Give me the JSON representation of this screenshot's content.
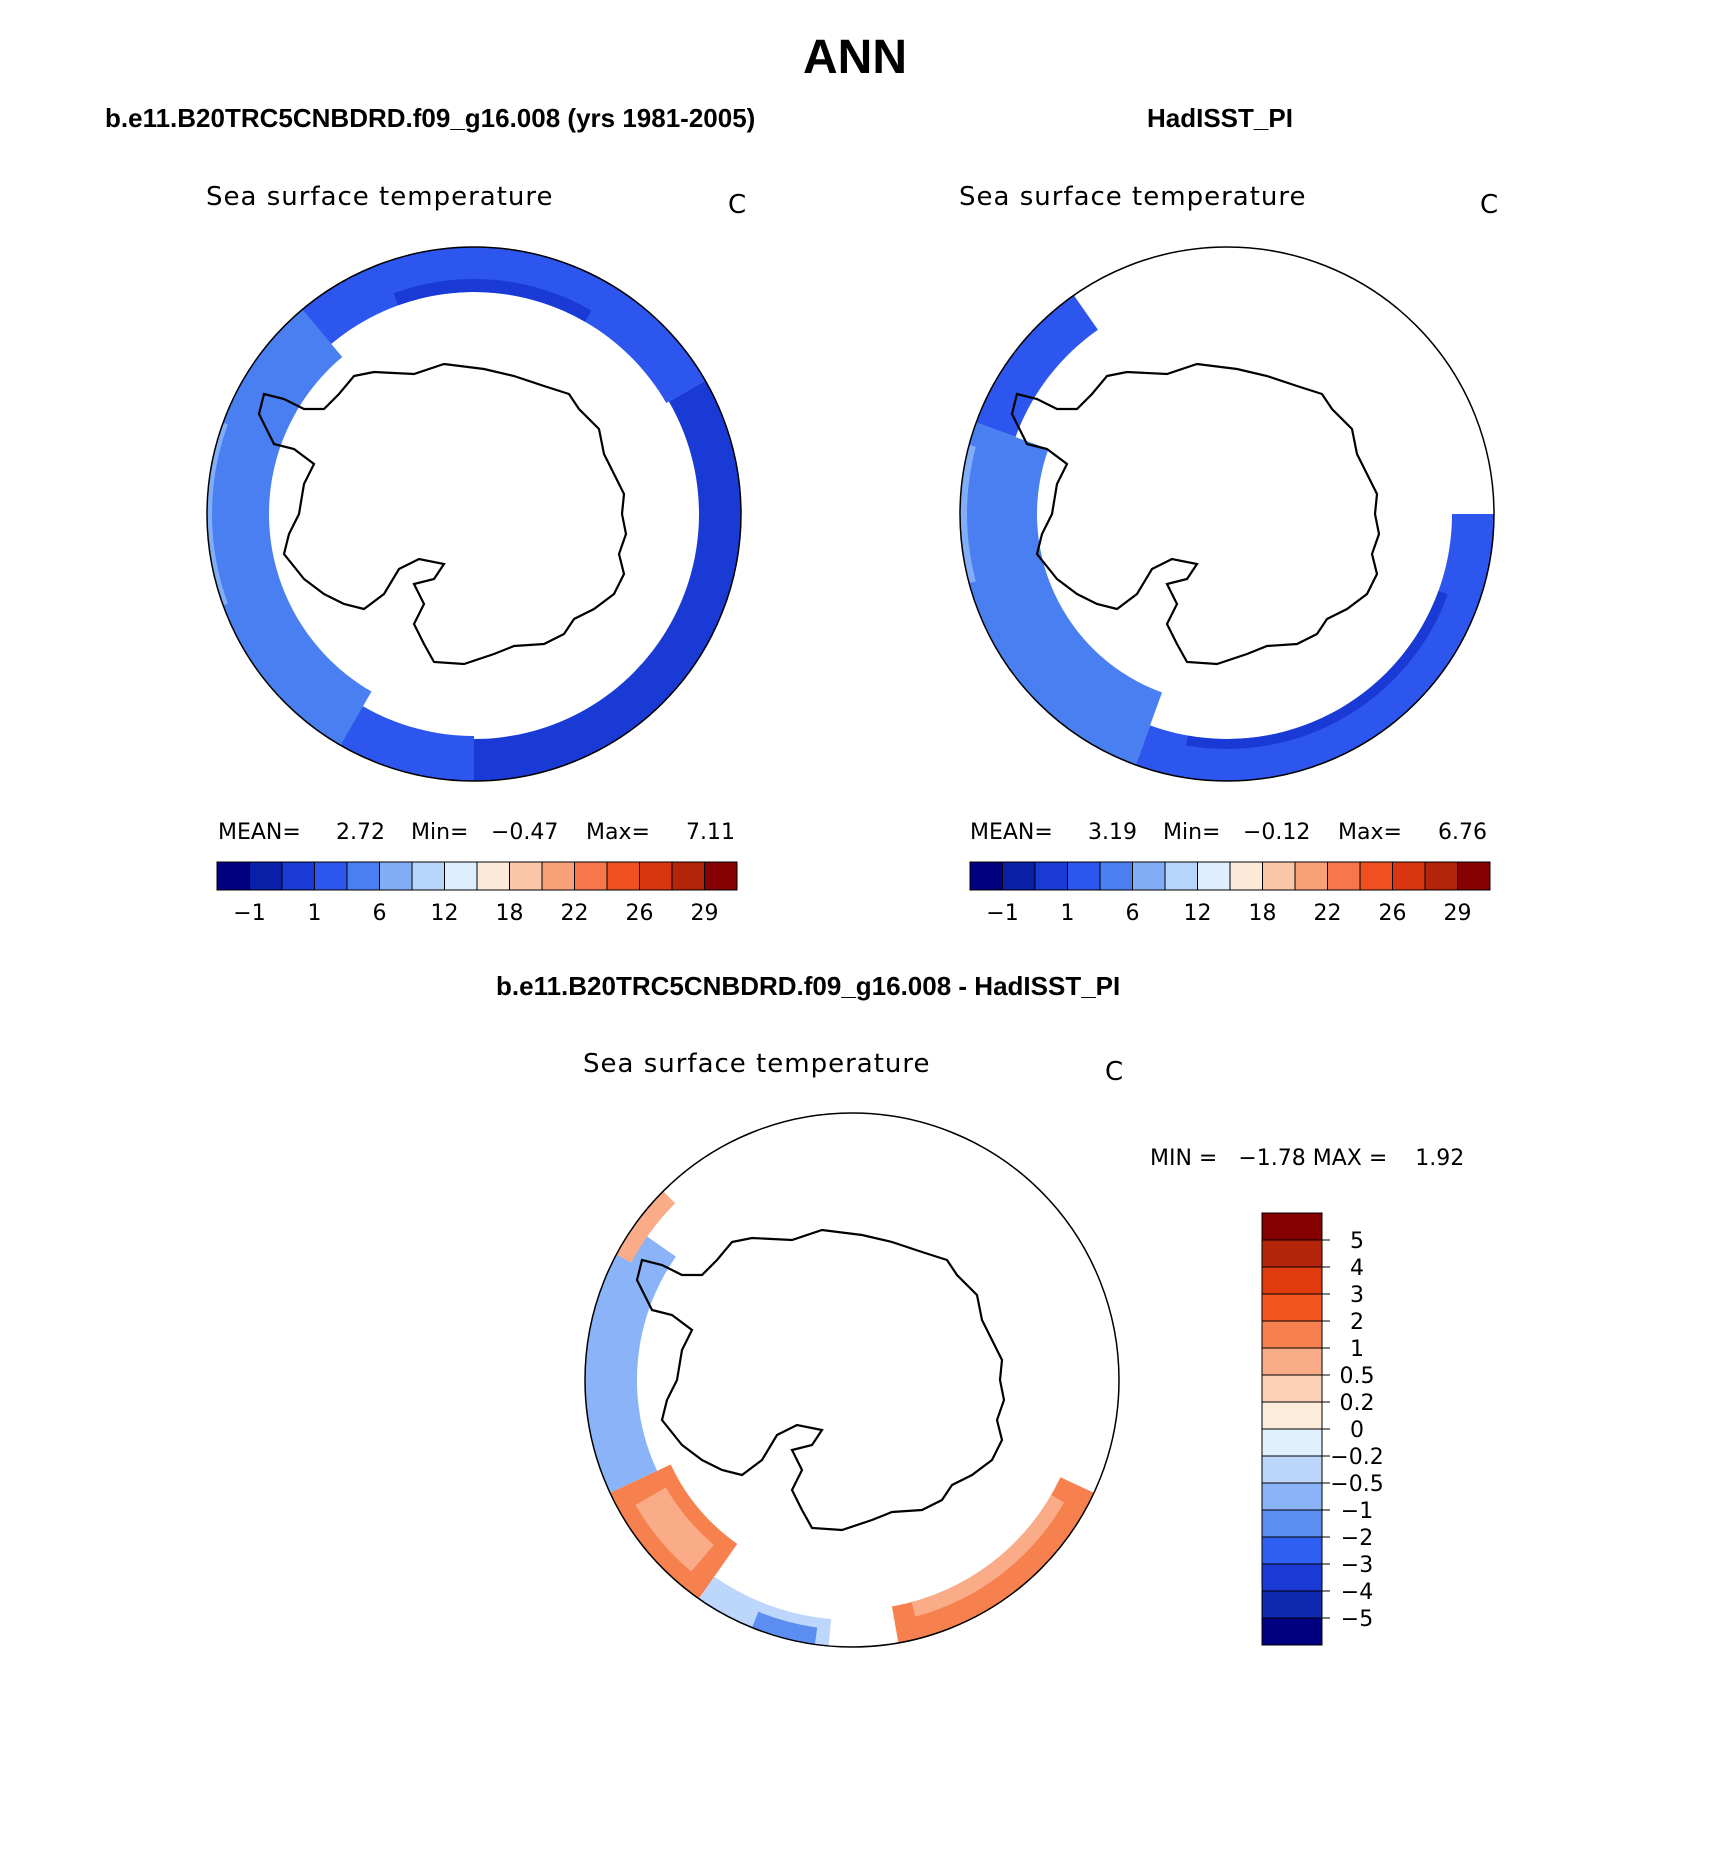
{
  "page": {
    "title": "ANN"
  },
  "panels": {
    "model": {
      "header": "b.e11.B20TRC5CNBDRD.f09_g16.008 (yrs 1981-2005)",
      "variable": "Sea surface temperature",
      "units": "C",
      "mean_label": "MEAN=",
      "mean_value": "2.72",
      "min_label": "Min=",
      "min_value": "−0.47",
      "max_label": "Max=",
      "max_value": "7.11"
    },
    "obs": {
      "header": "HadISST_PI",
      "variable": "Sea surface temperature",
      "units": "C",
      "mean_label": "MEAN=",
      "mean_value": "3.19",
      "min_label": "Min=",
      "min_value": "−0.12",
      "max_label": "Max=",
      "max_value": "6.76"
    },
    "diff": {
      "header": "b.e11.B20TRC5CNBDRD.f09_g16.008 - HadISST_PI",
      "variable": "Sea surface temperature",
      "units": "C",
      "minmax": "MIN =   −1.78 MAX =    1.92"
    }
  },
  "chart_data": [
    {
      "type": "heatmap",
      "title": "Sea surface temperature",
      "subtitle": "b.e11.B20TRC5CNBDRD.f09_g16.008 (yrs 1981-2005)",
      "units": "C",
      "projection": "south polar stereographic",
      "mean": 2.72,
      "min": -0.47,
      "max": 7.11,
      "colorbar": {
        "tick_labels": [
          "−1",
          "1",
          "6",
          "12",
          "18",
          "22",
          "26",
          "29"
        ],
        "colors": [
          "#000080",
          "#0a1fa8",
          "#1a3ad6",
          "#2d56ee",
          "#4a7ff2",
          "#82aef7",
          "#b7d4fb",
          "#ddefff",
          "#fde9d8",
          "#fcc7a8",
          "#f9a27a",
          "#f7774a",
          "#f14e22",
          "#da3511",
          "#b3240a",
          "#850000"
        ]
      }
    },
    {
      "type": "heatmap",
      "title": "Sea surface temperature",
      "subtitle": "HadISST_PI",
      "units": "C",
      "projection": "south polar stereographic",
      "mean": 3.19,
      "min": -0.12,
      "max": 6.76,
      "colorbar": {
        "tick_labels": [
          "−1",
          "1",
          "6",
          "12",
          "18",
          "22",
          "26",
          "29"
        ],
        "colors": [
          "#000080",
          "#0a1fa8",
          "#1a3ad6",
          "#2d56ee",
          "#4a7ff2",
          "#82aef7",
          "#b7d4fb",
          "#ddefff",
          "#fde9d8",
          "#fcc7a8",
          "#f9a27a",
          "#f7774a",
          "#f14e22",
          "#da3511",
          "#b3240a",
          "#850000"
        ]
      }
    },
    {
      "type": "heatmap",
      "title": "Sea surface temperature",
      "subtitle": "b.e11.B20TRC5CNBDRD.f09_g16.008 - HadISST_PI",
      "units": "C",
      "projection": "south polar stereographic",
      "min": -1.78,
      "max": 1.92,
      "colorbar": {
        "orientation": "vertical",
        "tick_labels": [
          "5",
          "4",
          "3",
          "2",
          "1",
          "0.5",
          "0.2",
          "0",
          "−0.2",
          "−0.5",
          "−1",
          "−2",
          "−3",
          "−4",
          "−5"
        ],
        "colors": [
          "#850000",
          "#b3240a",
          "#e23a0f",
          "#f4561f",
          "#f7814e",
          "#f9ac87",
          "#fcd1b7",
          "#fdebdc",
          "#e0f0ff",
          "#bcd7fb",
          "#8ab4f7",
          "#5c8ef2",
          "#2f5ff0",
          "#1a3ad6",
          "#0f28b0",
          "#000080"
        ]
      }
    }
  ]
}
